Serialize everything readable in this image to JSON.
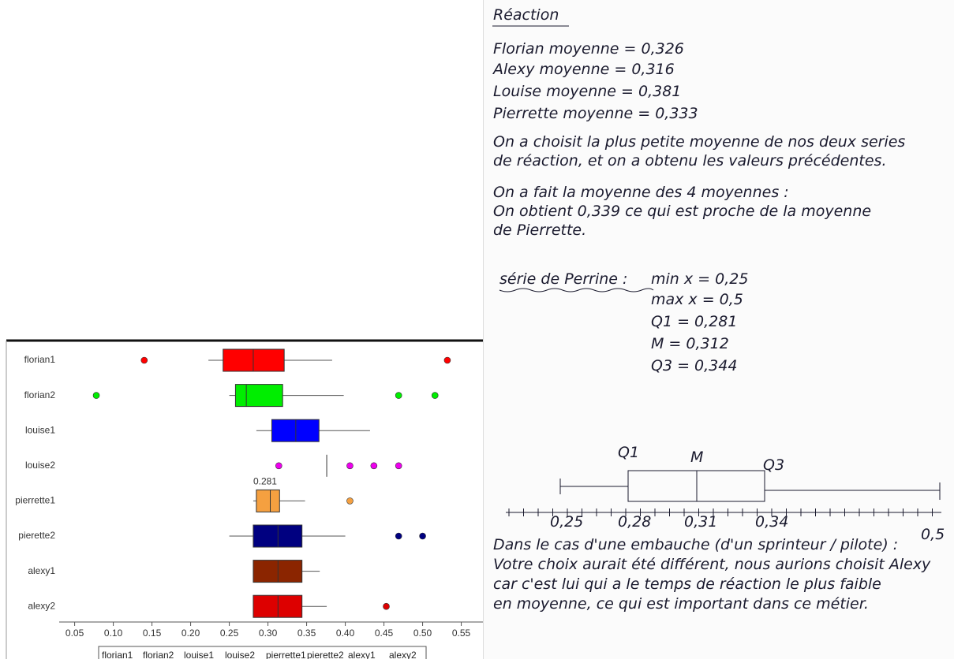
{
  "chart_data": {
    "type": "boxplot",
    "series": [
      {
        "name": "florian1",
        "color": "#ff0000",
        "min": 0.223,
        "q1": 0.242,
        "median": 0.281,
        "q3": 0.321,
        "max": 0.383,
        "outliers": [
          0.14,
          0.532
        ]
      },
      {
        "name": "florian2",
        "color": "#00ee00",
        "min": 0.25,
        "q1": 0.258,
        "median": 0.272,
        "q3": 0.319,
        "max": 0.398,
        "outliers": [
          0.078,
          0.469,
          0.516
        ]
      },
      {
        "name": "louise1",
        "color": "#0000ff",
        "min": 0.285,
        "q1": 0.305,
        "median": 0.336,
        "q3": 0.366,
        "max": 0.432,
        "outliers": []
      },
      {
        "name": "louise2",
        "color": "#ee00ee",
        "min": 0.376,
        "q1": 0.376,
        "median": 0.376,
        "q3": 0.376,
        "max": 0.376,
        "outliers": [
          0.314,
          0.406,
          0.437,
          0.469
        ]
      },
      {
        "name": "pierrette1",
        "color": "#f5a040",
        "min": 0.281,
        "q1": 0.285,
        "median": 0.303,
        "q3": 0.315,
        "max": 0.348,
        "outliers": [
          0.406
        ]
      },
      {
        "name": "pierette2",
        "color": "#000080",
        "min": 0.25,
        "q1": 0.281,
        "median": 0.313,
        "q3": 0.344,
        "max": 0.4,
        "outliers": [
          0.469,
          0.5
        ]
      },
      {
        "name": "alexy1",
        "color": "#8b2500",
        "min": 0.281,
        "q1": 0.281,
        "median": 0.313,
        "q3": 0.344,
        "max": 0.367,
        "outliers": []
      },
      {
        "name": "alexy2",
        "color": "#dd0000",
        "min": 0.281,
        "q1": 0.281,
        "median": 0.313,
        "q3": 0.344,
        "max": 0.376,
        "outliers": [
          0.453
        ]
      }
    ],
    "annotation": {
      "value": 0.281,
      "label": "0.281"
    },
    "xlim": [
      0.03,
      0.578
    ],
    "xticks": [
      0.05,
      {
        "value": 0.1,
        "label": "0.10"
      },
      0.15,
      {
        "value": 0.2,
        "label": "0.20"
      },
      0.25,
      {
        "value": 0.3,
        "label": "0.30"
      },
      0.35,
      {
        "value": 0.4,
        "label": "0.40"
      },
      0.45,
      {
        "value": 0.5,
        "label": "0.50"
      },
      0.55
    ]
  },
  "document": {
    "title": "Réaction",
    "means": [
      "Florian moyenne = 0,326",
      "Alexy moyenne = 0,316",
      "Louise moyenne = 0,381",
      "Pierrette moyenne = 0,333"
    ],
    "paragraph1": [
      "On a choisit la plus petite moyenne de nos deux series",
      "de réaction, et on a obtenu les valeurs précédentes."
    ],
    "paragraph2": [
      "On a fait la moyenne des 4 moyennes :",
      "On obtient 0,339 ce qui est proche de la moyenne",
      "de Pierrette."
    ],
    "series_heading": "série de Perrine :",
    "stats": [
      "min x = 0,25",
      "max x = 0,5",
      "Q1 = 0,281",
      "M = 0,312",
      "Q3 = 0,344"
    ],
    "sketch": {
      "labels": [
        "Q1",
        "M",
        "Q3"
      ],
      "axis_labels": [
        "0,25",
        "0,28",
        "0,31",
        "0,34",
        "0,5"
      ]
    },
    "conclusion": [
      "Dans le cas d'une embauche (d'un sprinteur / pilote) :",
      "Votre choix aurait été différent, nous aurions choisit Alexy",
      "car c'est lui qui a le temps de réaction le plus faible",
      "en moyenne, ce qui est important dans ce métier."
    ]
  }
}
